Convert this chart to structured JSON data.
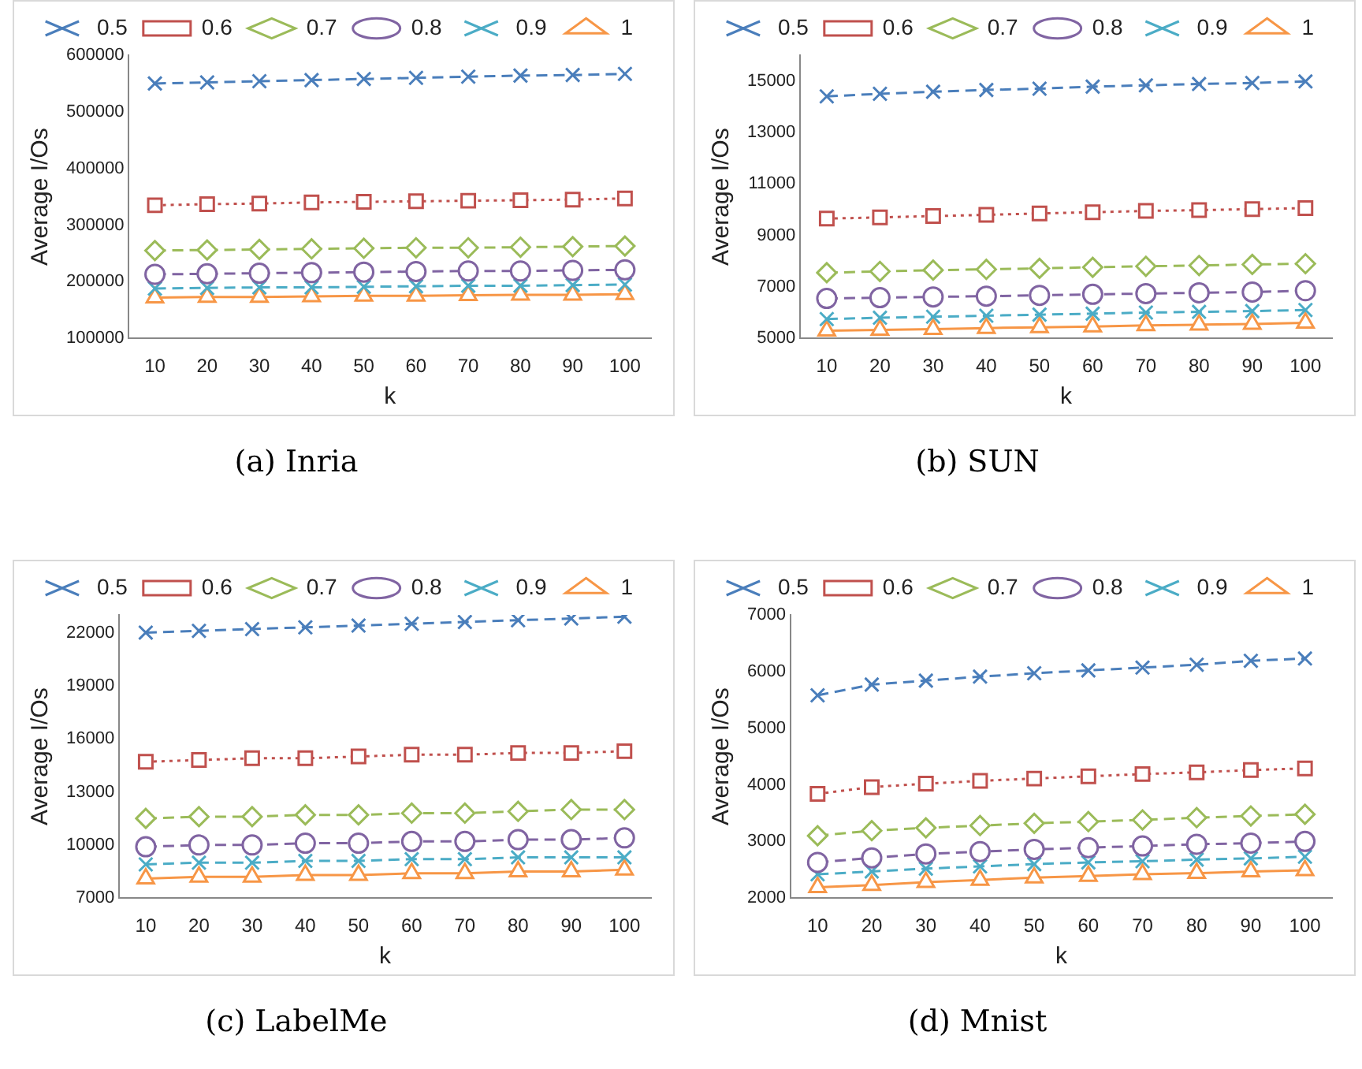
{
  "chart_data": [
    {
      "type": "line",
      "xlabel": "k",
      "ylabel": "Average I/Os",
      "annotations": [
        "(a) Inria"
      ],
      "categories": [
        "10",
        "20",
        "30",
        "40",
        "50",
        "60",
        "70",
        "80",
        "90",
        "100"
      ],
      "ylim": [
        100000,
        600000
      ],
      "yticks": [
        100000,
        200000,
        300000,
        400000,
        500000,
        600000
      ],
      "grid": false,
      "legend": "top",
      "series": [
        {
          "name": "0.5",
          "color": "#4a7ebb",
          "marker": "cross",
          "line_style": "dashed",
          "values": [
            550000,
            552000,
            554000,
            556000,
            558000,
            560000,
            562000,
            564000,
            565000,
            567000
          ]
        },
        {
          "name": "0.6",
          "color": "#c0504d",
          "marker": "square",
          "line_style": "dotted",
          "values": [
            335000,
            337000,
            338000,
            340000,
            341000,
            342000,
            343000,
            344000,
            345000,
            347000
          ]
        },
        {
          "name": "0.7",
          "color": "#9bbb59",
          "marker": "diamond",
          "line_style": "dashed",
          "values": [
            255000,
            256000,
            257000,
            258000,
            259000,
            260000,
            260000,
            261000,
            262000,
            263000
          ]
        },
        {
          "name": "0.8",
          "color": "#8064a2",
          "marker": "circle",
          "line_style": "dashed",
          "values": [
            213000,
            214000,
            215000,
            216000,
            217000,
            218000,
            219000,
            219000,
            220000,
            221000
          ]
        },
        {
          "name": "0.9",
          "color": "#4bacc6",
          "marker": "cross",
          "line_style": "dashed",
          "values": [
            188000,
            189000,
            190000,
            190000,
            191000,
            192000,
            193000,
            193000,
            194000,
            195000
          ]
        },
        {
          "name": "1",
          "color": "#f79646",
          "marker": "triangle",
          "line_style": "solid",
          "values": [
            172000,
            173000,
            173000,
            174000,
            175000,
            175000,
            176000,
            177000,
            177000,
            178000
          ]
        }
      ]
    },
    {
      "type": "line",
      "xlabel": "k",
      "ylabel": "Average I/Os",
      "annotations": [
        "(b) SUN"
      ],
      "categories": [
        "10",
        "20",
        "30",
        "40",
        "50",
        "60",
        "70",
        "80",
        "90",
        "100"
      ],
      "ylim": [
        5000,
        16000
      ],
      "yticks": [
        5000,
        7000,
        9000,
        11000,
        13000,
        15000
      ],
      "grid": false,
      "legend": "top",
      "series": [
        {
          "name": "0.5",
          "color": "#4a7ebb",
          "marker": "cross",
          "line_style": "dashed",
          "values": [
            14400,
            14500,
            14580,
            14650,
            14700,
            14780,
            14830,
            14880,
            14920,
            14980
          ]
        },
        {
          "name": "0.6",
          "color": "#c0504d",
          "marker": "square",
          "line_style": "dotted",
          "values": [
            9650,
            9700,
            9750,
            9800,
            9850,
            9900,
            9950,
            9980,
            10020,
            10060
          ]
        },
        {
          "name": "0.7",
          "color": "#9bbb59",
          "marker": "diamond",
          "line_style": "dashed",
          "values": [
            7550,
            7600,
            7650,
            7680,
            7720,
            7760,
            7800,
            7830,
            7870,
            7900
          ]
        },
        {
          "name": "0.8",
          "color": "#8064a2",
          "marker": "circle",
          "line_style": "dashed",
          "values": [
            6550,
            6580,
            6610,
            6640,
            6670,
            6710,
            6740,
            6770,
            6800,
            6850
          ]
        },
        {
          "name": "0.9",
          "color": "#4bacc6",
          "marker": "cross",
          "line_style": "dashed",
          "values": [
            5750,
            5800,
            5840,
            5880,
            5920,
            5960,
            6000,
            6030,
            6060,
            6100
          ]
        },
        {
          "name": "1",
          "color": "#f79646",
          "marker": "triangle",
          "line_style": "solid",
          "values": [
            5300,
            5330,
            5360,
            5400,
            5430,
            5460,
            5500,
            5530,
            5560,
            5600
          ]
        }
      ]
    },
    {
      "type": "line",
      "xlabel": "k",
      "ylabel": "Average I/Os",
      "annotations": [
        "(c) LabelMe"
      ],
      "categories": [
        "10",
        "20",
        "30",
        "40",
        "50",
        "60",
        "70",
        "80",
        "90",
        "100"
      ],
      "ylim": [
        7000,
        23000
      ],
      "yticks": [
        7000,
        10000,
        13000,
        16000,
        19000,
        22000
      ],
      "grid": false,
      "legend": "top",
      "series": [
        {
          "name": "0.5",
          "color": "#4a7ebb",
          "marker": "cross",
          "line_style": "dashed",
          "values": [
            22000,
            22100,
            22200,
            22300,
            22400,
            22500,
            22600,
            22700,
            22800,
            22900
          ]
        },
        {
          "name": "0.6",
          "color": "#c0504d",
          "marker": "square",
          "line_style": "dotted",
          "values": [
            14700,
            14800,
            14900,
            14900,
            15000,
            15100,
            15100,
            15200,
            15200,
            15300
          ]
        },
        {
          "name": "0.7",
          "color": "#9bbb59",
          "marker": "diamond",
          "line_style": "dashed",
          "values": [
            11500,
            11600,
            11600,
            11700,
            11700,
            11800,
            11800,
            11900,
            12000,
            12000
          ]
        },
        {
          "name": "0.8",
          "color": "#8064a2",
          "marker": "circle",
          "line_style": "dashed",
          "values": [
            9900,
            10000,
            10000,
            10100,
            10100,
            10200,
            10200,
            10300,
            10300,
            10400
          ]
        },
        {
          "name": "0.9",
          "color": "#4bacc6",
          "marker": "cross",
          "line_style": "dashed",
          "values": [
            8900,
            9000,
            9000,
            9100,
            9100,
            9200,
            9200,
            9300,
            9300,
            9300
          ]
        },
        {
          "name": "1",
          "color": "#f79646",
          "marker": "triangle",
          "line_style": "solid",
          "values": [
            8100,
            8200,
            8200,
            8300,
            8300,
            8400,
            8400,
            8500,
            8500,
            8600
          ]
        }
      ]
    },
    {
      "type": "line",
      "xlabel": "k",
      "ylabel": "Average I/Os",
      "annotations": [
        "(d) Mnist"
      ],
      "categories": [
        "10",
        "20",
        "30",
        "40",
        "50",
        "60",
        "70",
        "80",
        "90",
        "100"
      ],
      "ylim": [
        2000,
        7000
      ],
      "yticks": [
        2000,
        3000,
        4000,
        5000,
        6000,
        7000
      ],
      "grid": false,
      "legend": "top",
      "series": [
        {
          "name": "0.5",
          "color": "#4a7ebb",
          "marker": "cross",
          "line_style": "dashed",
          "values": [
            5580,
            5770,
            5840,
            5910,
            5970,
            6020,
            6070,
            6120,
            6190,
            6230
          ]
        },
        {
          "name": "0.6",
          "color": "#c0504d",
          "marker": "square",
          "line_style": "dotted",
          "values": [
            3840,
            3960,
            4020,
            4070,
            4110,
            4150,
            4190,
            4220,
            4260,
            4290
          ]
        },
        {
          "name": "0.7",
          "color": "#9bbb59",
          "marker": "diamond",
          "line_style": "dashed",
          "values": [
            3100,
            3190,
            3240,
            3280,
            3320,
            3350,
            3380,
            3420,
            3450,
            3480
          ]
        },
        {
          "name": "0.8",
          "color": "#8064a2",
          "marker": "circle",
          "line_style": "dashed",
          "values": [
            2630,
            2710,
            2780,
            2820,
            2860,
            2890,
            2920,
            2950,
            2970,
            3000
          ]
        },
        {
          "name": "0.9",
          "color": "#4bacc6",
          "marker": "cross",
          "line_style": "dashed",
          "values": [
            2420,
            2470,
            2520,
            2560,
            2600,
            2630,
            2650,
            2680,
            2700,
            2730
          ]
        },
        {
          "name": "1",
          "color": "#f79646",
          "marker": "triangle",
          "line_style": "solid",
          "values": [
            2190,
            2230,
            2280,
            2320,
            2360,
            2390,
            2420,
            2440,
            2470,
            2490
          ]
        }
      ]
    }
  ]
}
